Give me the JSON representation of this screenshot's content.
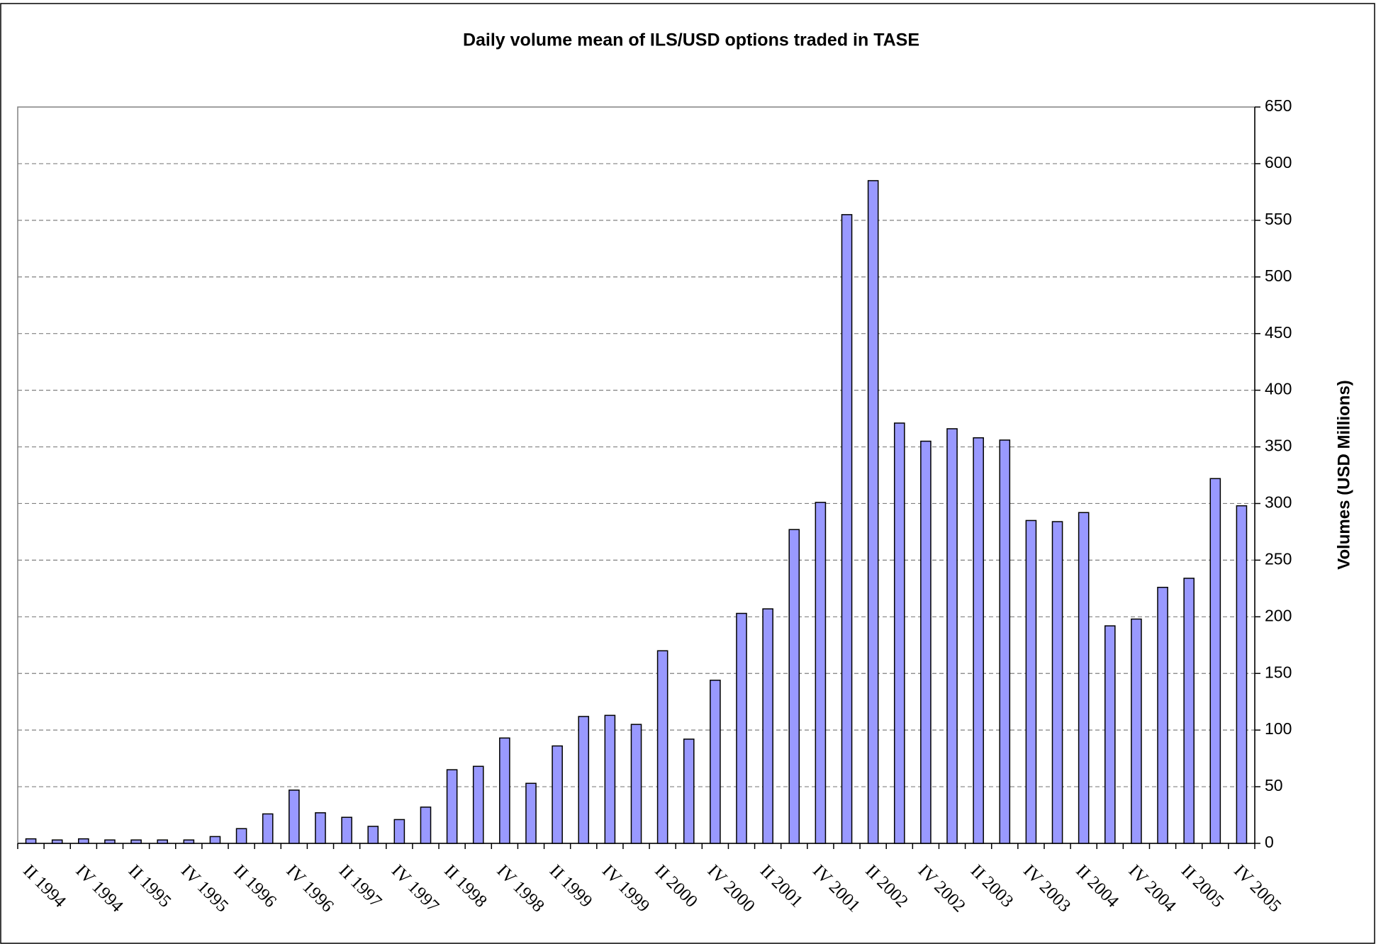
{
  "chart_data": {
    "type": "bar",
    "title": "Daily volume mean of ILS/USD options traded in TASE",
    "y_label": "Volumes (USD Millions)",
    "categories": [
      "II 1994",
      null,
      "IV 1994",
      null,
      "II 1995",
      null,
      "IV 1995",
      null,
      "II 1996",
      null,
      "IV 1996",
      null,
      "II 1997",
      null,
      "IV 1997",
      null,
      "II 1998",
      null,
      "IV 1998",
      null,
      "II 1999",
      null,
      "IV 1999",
      null,
      "II 2000",
      null,
      "IV 2000",
      null,
      "II 2001",
      null,
      "IV 2001",
      null,
      "II 2002",
      null,
      "IV 2002",
      null,
      "II 2003",
      null,
      "IV 2003",
      null,
      "II 2004",
      null,
      "IV 2004",
      null,
      "II 2005",
      null,
      "IV 2005"
    ],
    "values": [
      4,
      3,
      4,
      3,
      3,
      3,
      3,
      6,
      13,
      26,
      47,
      27,
      23,
      15,
      21,
      32,
      65,
      68,
      93,
      53,
      86,
      112,
      113,
      105,
      170,
      92,
      144,
      203,
      207,
      277,
      301,
      555,
      585,
      371,
      355,
      366,
      358,
      356,
      285,
      284,
      292,
      192,
      198,
      226,
      234,
      322,
      298
    ],
    "color": "#9999ff",
    "ylim": [
      0,
      650
    ],
    "yticks": [
      0,
      50,
      100,
      150,
      200,
      250,
      300,
      350,
      400,
      450,
      500,
      550,
      600,
      650
    ],
    "grid": true,
    "y_axis_side": "right"
  }
}
